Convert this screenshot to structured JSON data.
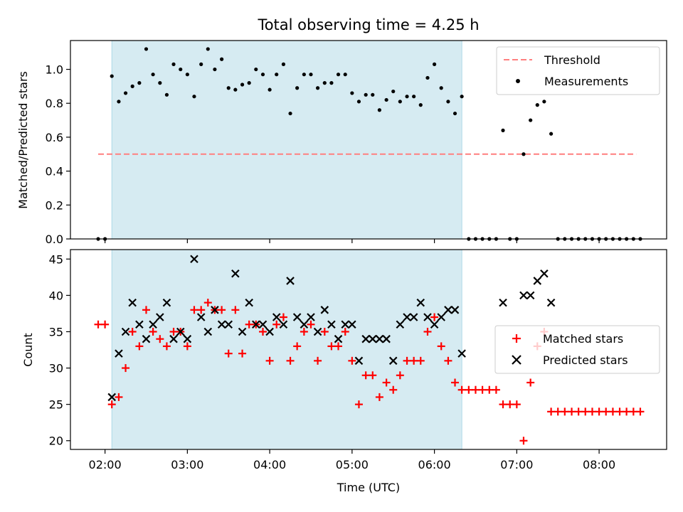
{
  "title": "Total observing time = 4.25 h",
  "chart_data": [
    {
      "type": "scatter",
      "ylabel": "Matched/Predicted stars",
      "ylim": [
        0,
        1.17
      ],
      "yticks": [
        0.0,
        0.2,
        0.4,
        0.6,
        0.8,
        1.0
      ],
      "ytick_labels": [
        "0.0",
        "0.2",
        "0.4",
        "0.6",
        "0.8",
        "1.0"
      ],
      "shaded_span": {
        "start": 2.083,
        "end": 6.333,
        "color": "#add8e6"
      },
      "threshold": {
        "name": "Threshold",
        "y": 0.5,
        "x_start": 1.917,
        "x_end": 8.45,
        "color": "#ff7f7f",
        "style": "dashed"
      },
      "legend": {
        "position": "top-right",
        "entries": [
          "Threshold",
          "Measurements"
        ]
      },
      "series": [
        {
          "name": "Measurements",
          "color": "#000000",
          "x": [
            1.917,
            2.0,
            2.083,
            2.167,
            2.25,
            2.333,
            2.417,
            2.5,
            2.583,
            2.667,
            2.75,
            2.833,
            2.917,
            3.0,
            3.083,
            3.167,
            3.25,
            3.333,
            3.417,
            3.5,
            3.583,
            3.667,
            3.75,
            3.833,
            3.917,
            4.0,
            4.083,
            4.167,
            4.25,
            4.333,
            4.417,
            4.5,
            4.583,
            4.667,
            4.75,
            4.833,
            4.917,
            5.0,
            5.083,
            5.167,
            5.25,
            5.333,
            5.417,
            5.5,
            5.583,
            5.667,
            5.75,
            5.833,
            5.917,
            6.0,
            6.083,
            6.167,
            6.25,
            6.333,
            6.417,
            6.5,
            6.583,
            6.667,
            6.75,
            6.833,
            6.917,
            7.0,
            7.083,
            7.167,
            7.25,
            7.333,
            7.417,
            7.5,
            7.583,
            7.667,
            7.75,
            7.833,
            7.917,
            8.0,
            8.083,
            8.167,
            8.25,
            8.333,
            8.417,
            8.5
          ],
          "y": [
            0,
            0,
            0.96,
            0.81,
            0.86,
            0.9,
            0.92,
            1.12,
            0.97,
            0.92,
            0.85,
            1.03,
            1.0,
            0.97,
            0.84,
            1.03,
            1.12,
            1.0,
            1.06,
            0.89,
            0.88,
            0.91,
            0.92,
            1.0,
            0.97,
            0.88,
            0.97,
            1.03,
            0.74,
            0.89,
            0.97,
            0.97,
            0.89,
            0.92,
            0.92,
            0.97,
            0.97,
            0.86,
            0.81,
            0.85,
            0.85,
            0.76,
            0.82,
            0.87,
            0.81,
            0.84,
            0.84,
            0.79,
            0.95,
            1.03,
            0.89,
            0.81,
            0.74,
            0.84,
            0,
            0,
            0,
            0,
            0,
            0.64,
            0,
            0,
            0.5,
            0.7,
            0.79,
            0.81,
            0.62,
            0,
            0,
            0,
            0,
            0,
            0,
            0,
            0,
            0,
            0,
            0,
            0,
            0
          ]
        }
      ]
    },
    {
      "type": "scatter",
      "xlabel": "Time (UTC)",
      "ylabel": "Count",
      "ylim": [
        18.8,
        46.3
      ],
      "xlim": [
        1.58,
        8.82
      ],
      "yticks": [
        20,
        25,
        30,
        35,
        40,
        45
      ],
      "ytick_labels": [
        "20",
        "25",
        "30",
        "35",
        "40",
        "45"
      ],
      "xticks": [
        2,
        3,
        4,
        5,
        6,
        7,
        8
      ],
      "xtick_labels": [
        "02:00",
        "03:00",
        "04:00",
        "05:00",
        "06:00",
        "07:00",
        "08:00"
      ],
      "shaded_span": {
        "start": 2.083,
        "end": 6.333,
        "color": "#add8e6"
      },
      "legend": {
        "position": "center-right",
        "entries": [
          "Matched stars",
          "Predicted stars"
        ]
      },
      "series": [
        {
          "name": "Matched stars",
          "color": "#ff0000",
          "marker": "+",
          "x": [
            1.917,
            2.0,
            2.083,
            2.167,
            2.25,
            2.333,
            2.417,
            2.5,
            2.583,
            2.667,
            2.75,
            2.833,
            2.917,
            3.0,
            3.083,
            3.167,
            3.25,
            3.333,
            3.417,
            3.5,
            3.583,
            3.667,
            3.75,
            3.833,
            3.917,
            4.0,
            4.083,
            4.167,
            4.25,
            4.333,
            4.417,
            4.5,
            4.583,
            4.667,
            4.75,
            4.833,
            4.917,
            5.0,
            5.083,
            5.167,
            5.25,
            5.333,
            5.417,
            5.5,
            5.583,
            5.667,
            5.75,
            5.833,
            5.917,
            6.0,
            6.083,
            6.167,
            6.25,
            6.333,
            6.417,
            6.5,
            6.583,
            6.667,
            6.75,
            6.833,
            6.917,
            7.0,
            7.083,
            7.167,
            7.25,
            7.333,
            7.417,
            7.5,
            7.583,
            7.667,
            7.75,
            7.833,
            7.917,
            8.0,
            8.083,
            8.167,
            8.25,
            8.333,
            8.417,
            8.5
          ],
          "y": [
            36,
            36,
            25,
            26,
            30,
            35,
            33,
            38,
            35,
            34,
            33,
            35,
            35,
            33,
            38,
            38,
            39,
            38,
            38,
            32,
            38,
            32,
            36,
            36,
            35,
            31,
            36,
            37,
            31,
            33,
            35,
            36,
            31,
            35,
            33,
            33,
            35,
            31,
            25,
            29,
            29,
            26,
            28,
            27,
            29,
            31,
            31,
            31,
            35,
            37,
            33,
            31,
            28,
            27,
            27,
            27,
            27,
            27,
            27,
            25,
            25,
            25,
            20,
            28,
            33,
            35,
            24,
            24,
            24,
            24,
            24,
            24,
            24,
            24,
            24,
            24,
            24,
            24,
            24,
            24
          ]
        },
        {
          "name": "Predicted stars",
          "color": "#000000",
          "marker": "x",
          "x": [
            2.083,
            2.167,
            2.25,
            2.333,
            2.417,
            2.5,
            2.583,
            2.667,
            2.75,
            2.833,
            2.917,
            3.0,
            3.083,
            3.167,
            3.25,
            3.333,
            3.417,
            3.5,
            3.583,
            3.667,
            3.75,
            3.833,
            3.917,
            4.0,
            4.083,
            4.167,
            4.25,
            4.333,
            4.417,
            4.5,
            4.583,
            4.667,
            4.75,
            4.833,
            4.917,
            5.0,
            5.083,
            5.167,
            5.25,
            5.333,
            5.417,
            5.5,
            5.583,
            5.667,
            5.75,
            5.833,
            5.917,
            6.0,
            6.083,
            6.167,
            6.25,
            6.333,
            6.833,
            7.083,
            7.167,
            7.25,
            7.333,
            7.417
          ],
          "y": [
            26,
            32,
            35,
            39,
            36,
            34,
            36,
            37,
            39,
            34,
            35,
            34,
            45,
            37,
            35,
            38,
            36,
            36,
            43,
            35,
            39,
            36,
            36,
            35,
            37,
            36,
            42,
            37,
            36,
            37,
            35,
            38,
            36,
            34,
            36,
            36,
            31,
            34,
            34,
            34,
            34,
            31,
            36,
            37,
            37,
            39,
            37,
            36,
            37,
            38,
            38,
            32,
            39,
            40,
            40,
            42,
            43,
            39
          ]
        }
      ]
    }
  ]
}
